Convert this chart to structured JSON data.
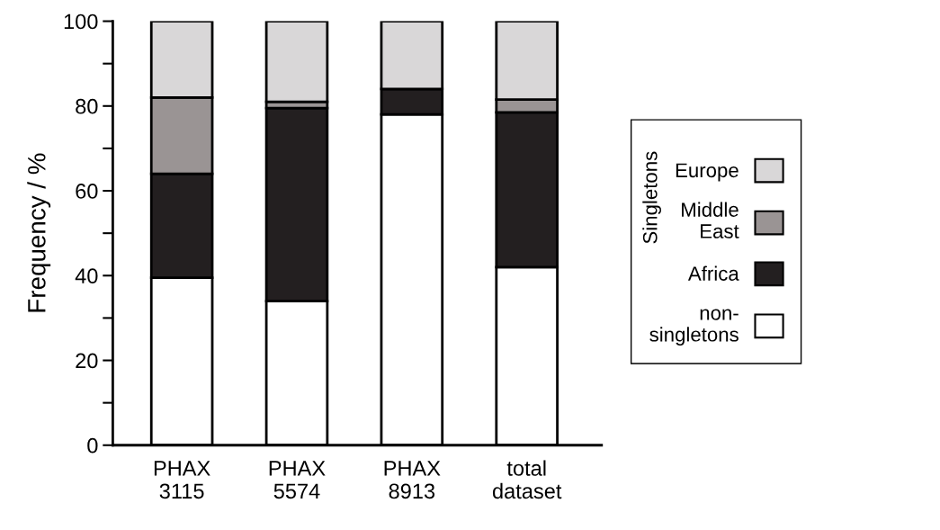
{
  "chart_data": {
    "type": "bar",
    "stacked": true,
    "ylabel": "Frequency / %",
    "legend_title": "Singletons",
    "legend": "right",
    "categories": [
      "PHAX\n3115",
      "PHAX\n5574",
      "PHAX\n8913",
      "total\ndataset"
    ],
    "series": [
      {
        "name": "non-\nsingletons",
        "color": "#ffffff",
        "values": [
          39.5,
          34,
          78,
          42
        ]
      },
      {
        "name": "Africa",
        "color": "#231f20",
        "values": [
          24.5,
          45.5,
          6,
          36.5
        ]
      },
      {
        "name": "Middle\nEast",
        "color": "#9a9494",
        "values": [
          18,
          1.5,
          0,
          3
        ]
      },
      {
        "name": "Europe",
        "color": "#d9d7d8",
        "values": [
          18,
          19,
          16,
          18.5
        ]
      }
    ],
    "ylim": [
      0,
      100
    ],
    "yticks": [
      0,
      {
        "value": 10,
        "label": null
      },
      20,
      {
        "value": 30,
        "label": null
      },
      40,
      {
        "value": 50,
        "label": null
      },
      60,
      {
        "value": 70,
        "label": null
      },
      80,
      {
        "value": 90,
        "label": null
      },
      100
    ]
  }
}
